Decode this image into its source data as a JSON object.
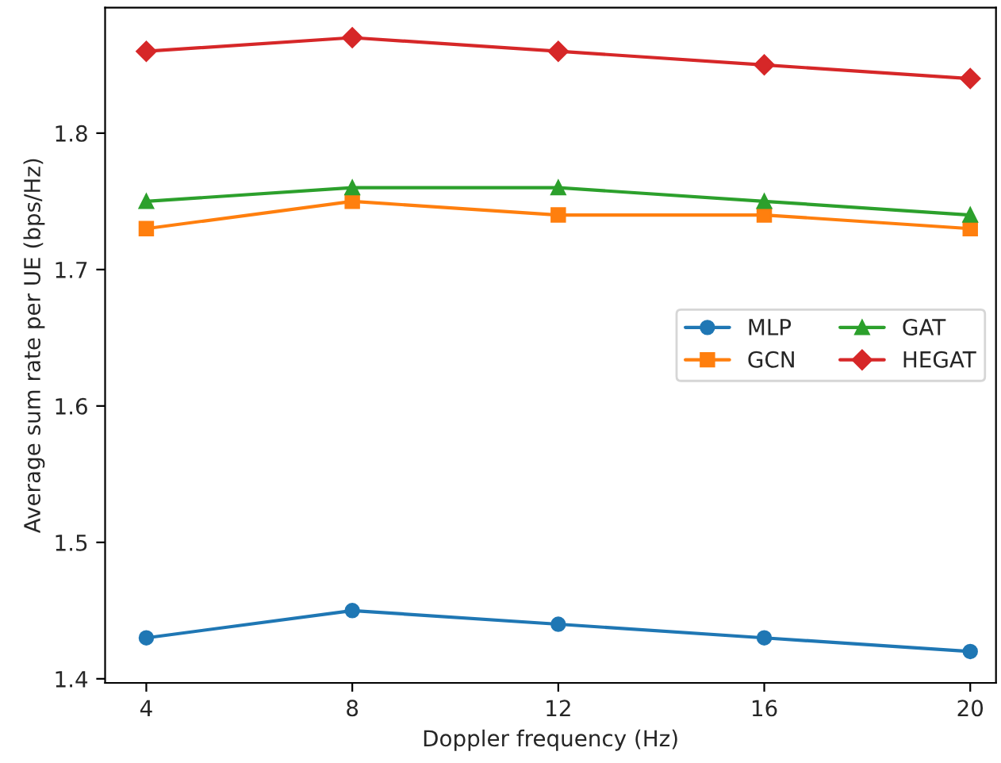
{
  "chart_data": {
    "type": "line",
    "xlabel": "Doppler frequency (Hz)",
    "ylabel": "Average sum rate per UE (bps/Hz)",
    "x": [
      4,
      8,
      12,
      16,
      20
    ],
    "series": [
      {
        "name": "MLP",
        "color": "#1f77b4",
        "marker": "circle",
        "values": [
          1.43,
          1.45,
          1.44,
          1.43,
          1.42
        ]
      },
      {
        "name": "GCN",
        "color": "#ff7f0e",
        "marker": "square",
        "values": [
          1.73,
          1.75,
          1.74,
          1.74,
          1.73
        ]
      },
      {
        "name": "GAT",
        "color": "#2ca02c",
        "marker": "triangle",
        "values": [
          1.75,
          1.76,
          1.76,
          1.75,
          1.74
        ]
      },
      {
        "name": "HEGAT",
        "color": "#d62728",
        "marker": "diamond",
        "values": [
          1.86,
          1.87,
          1.86,
          1.85,
          1.84
        ]
      }
    ],
    "xlim": [
      3.2,
      20.5
    ],
    "xticks": [
      4,
      8,
      12,
      16,
      20
    ],
    "ylim": [
      1.397,
      1.892
    ],
    "yticks": [
      1.4,
      1.5,
      1.6,
      1.7,
      1.8
    ],
    "legend": "right",
    "grid": false,
    "line_style": "solid"
  }
}
